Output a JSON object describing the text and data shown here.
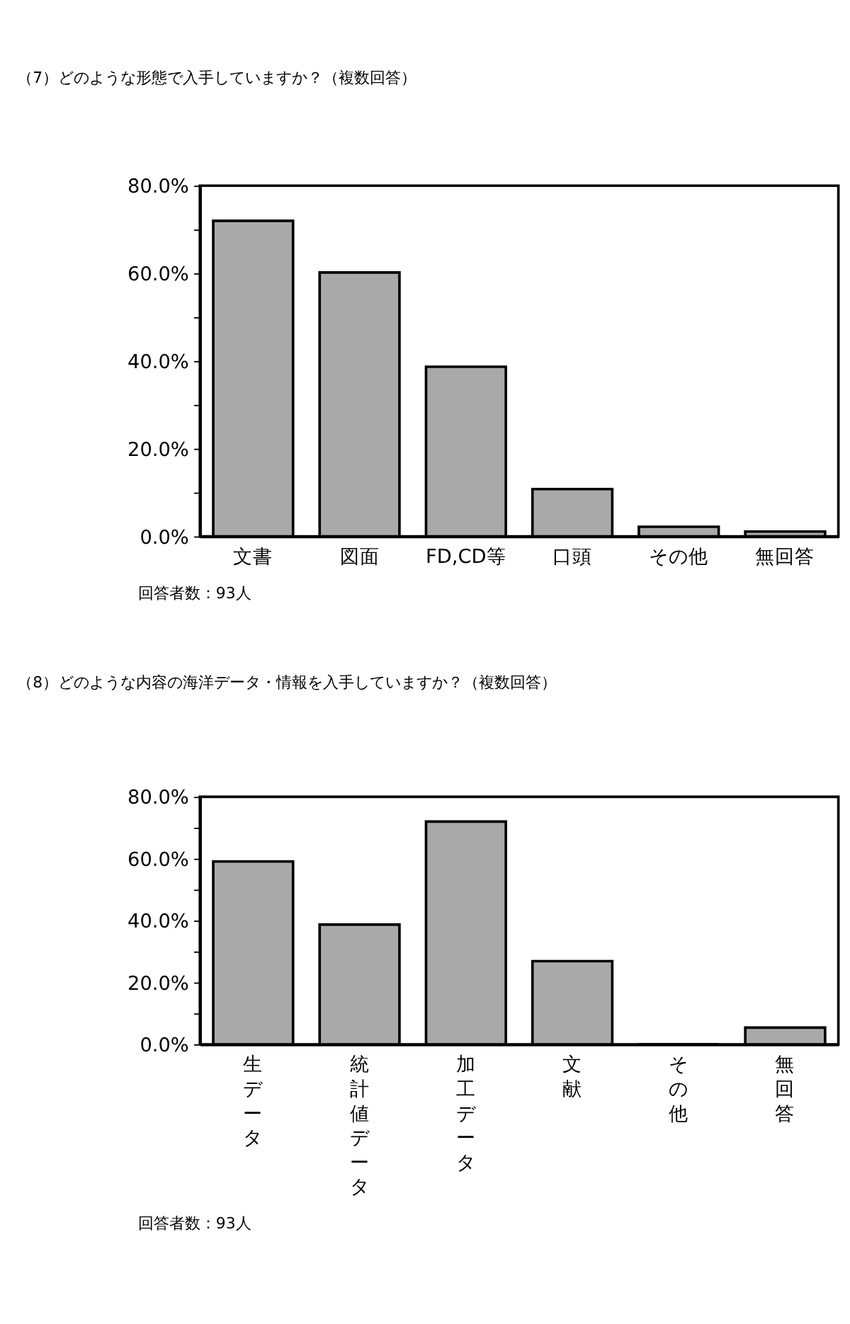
{
  "chart_data": [
    {
      "type": "bar",
      "title": "（7）どのような形態で入手していますか？（複数回答）",
      "categories": [
        "文書",
        "図面",
        "FD,CD等",
        "口頭",
        "その他",
        "無回答"
      ],
      "values": [
        72.0,
        60.2,
        38.7,
        10.8,
        2.2,
        1.1
      ],
      "color": "#a9a9a9",
      "ylim": [
        0,
        80
      ],
      "yticks": [
        {
          "value": 0,
          "label": "0.0%"
        },
        {
          "value": 10,
          "label": null
        },
        {
          "value": 20,
          "label": "20.0%"
        },
        {
          "value": 30,
          "label": null
        },
        {
          "value": 40,
          "label": "40.0%"
        },
        {
          "value": 50,
          "label": null
        },
        {
          "value": 60,
          "label": "60.0%"
        },
        {
          "value": 70,
          "label": null
        },
        {
          "value": 80,
          "label": "80.0%"
        }
      ],
      "grid": false,
      "annotations": [
        "回答者数：93人"
      ]
    },
    {
      "type": "bar",
      "title": "（8）どのような内容の海洋データ・情報を入手していますか？（複数回答）",
      "categories": [
        "生データ",
        "統計値データ",
        "加工データ",
        "文献",
        "その他",
        "無回答"
      ],
      "values": [
        59.1,
        38.7,
        72.0,
        26.9,
        0,
        5.4
      ],
      "color": "#a9a9a9",
      "ylim": [
        0,
        80
      ],
      "yticks": [
        {
          "value": 0,
          "label": "0.0%"
        },
        {
          "value": 10,
          "label": null
        },
        {
          "value": 20,
          "label": "20.0%"
        },
        {
          "value": 30,
          "label": null
        },
        {
          "value": 40,
          "label": "40.0%"
        },
        {
          "value": 50,
          "label": null
        },
        {
          "value": 60,
          "label": "60.0%"
        },
        {
          "value": 70,
          "label": null
        },
        {
          "value": 80,
          "label": "80.0%"
        }
      ],
      "grid": false,
      "annotations": [
        "回答者数：93人"
      ]
    }
  ]
}
